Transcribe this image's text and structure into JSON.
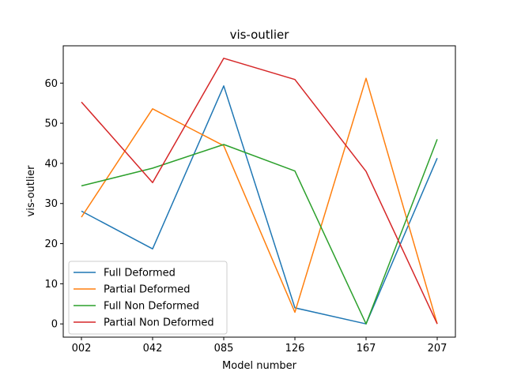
{
  "chart_data": {
    "type": "line",
    "title": "vis-outlier",
    "xlabel": "Model number",
    "ylabel": "vis-outlier",
    "categories": [
      "002",
      "042",
      "085",
      "126",
      "167",
      "207"
    ],
    "ylim": [
      -3.3,
      69.3
    ],
    "yticks": [
      0,
      10,
      20,
      30,
      40,
      50,
      60
    ],
    "grid": false,
    "legend_position": "lower-left",
    "series": [
      {
        "name": "Full Deformed",
        "color": "#1f77b4",
        "values": [
          28.1,
          18.7,
          59.3,
          4.0,
          0.0,
          41.3
        ]
      },
      {
        "name": "Partial Deformed",
        "color": "#ff7f0e",
        "values": [
          26.6,
          53.6,
          44.4,
          2.9,
          61.2,
          0.0
        ]
      },
      {
        "name": "Full Non Deformed",
        "color": "#2ca02c",
        "values": [
          34.4,
          38.8,
          44.7,
          38.1,
          0.0,
          46.0
        ]
      },
      {
        "name": "Partial Non Deformed",
        "color": "#d62728",
        "values": [
          55.3,
          35.2,
          66.2,
          60.9,
          38.0,
          0.0
        ]
      }
    ]
  }
}
